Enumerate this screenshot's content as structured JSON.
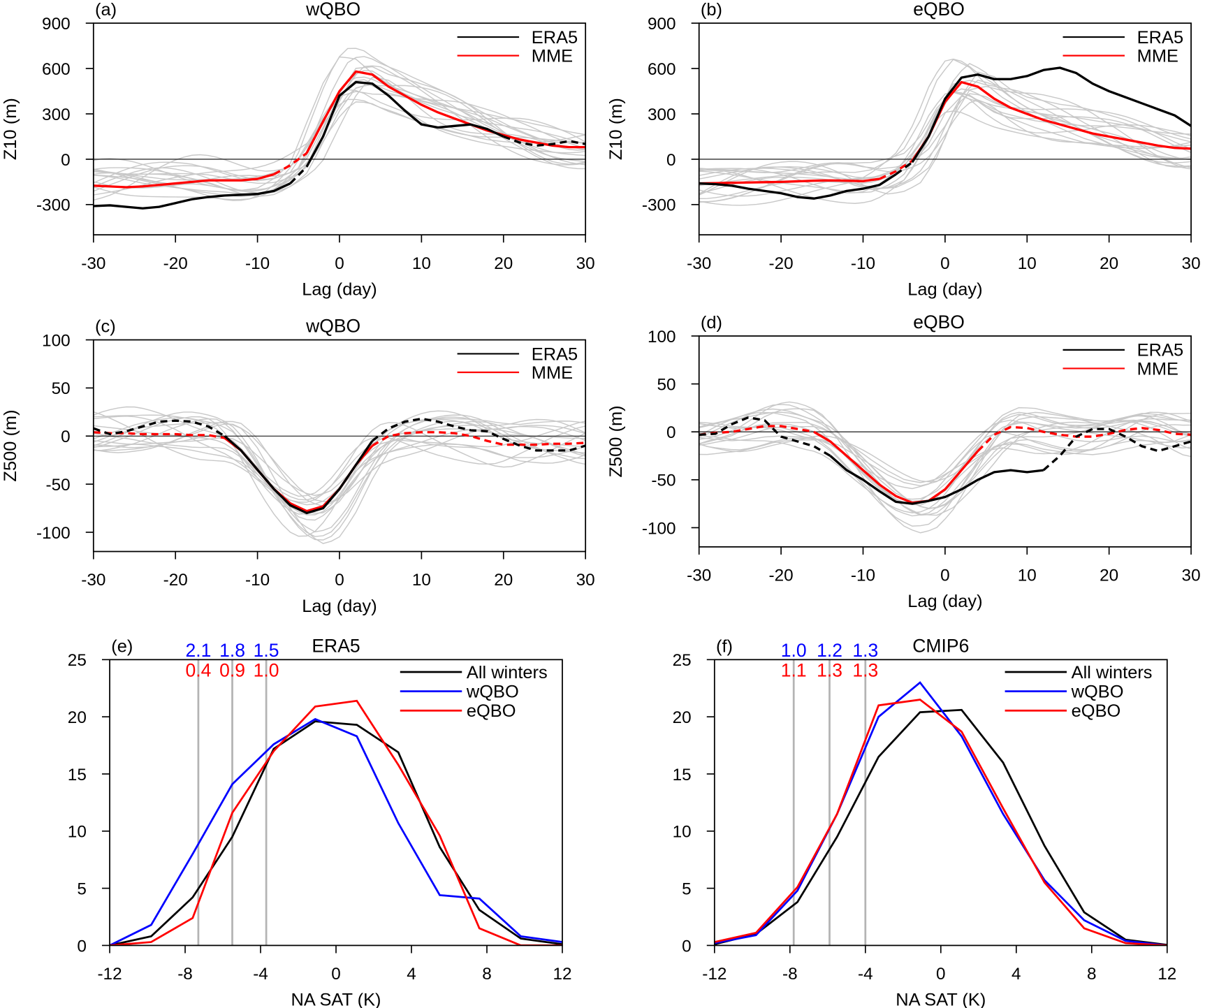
{
  "chart_data": [
    {
      "id": "a",
      "type": "line",
      "panel_label": "(a)",
      "title": "wQBO",
      "xlabel": "Lag (day)",
      "ylabel": "Z10 (m)",
      "xlim": [
        -30,
        30
      ],
      "ylim": [
        -500,
        900
      ],
      "xticks": [
        -30,
        -20,
        -10,
        0,
        10,
        20,
        30
      ],
      "yticks": [
        -300,
        0,
        300,
        600,
        900
      ],
      "legend": [
        "ERA5",
        "MME"
      ],
      "legend_position": "top-right",
      "series": [
        {
          "name": "ERA5",
          "color": "#000000",
          "x": [
            -30,
            -28,
            -26,
            -24,
            -22,
            -20,
            -18,
            -16,
            -14,
            -12,
            -10,
            -8,
            -6,
            -4,
            -2,
            0,
            2,
            4,
            6,
            8,
            10,
            12,
            14,
            16,
            18,
            20,
            22,
            24,
            26,
            28,
            30
          ],
          "y": [
            -310,
            -305,
            -315,
            -325,
            -315,
            -290,
            -265,
            -250,
            -240,
            -235,
            -230,
            -210,
            -160,
            -50,
            150,
            420,
            510,
            500,
            420,
            320,
            230,
            210,
            220,
            230,
            200,
            150,
            110,
            90,
            100,
            120,
            100
          ],
          "solid_ranges": [
            [
              -30,
              -6
            ],
            [
              -3,
              20
            ]
          ]
        },
        {
          "name": "MME",
          "color": "#ff0000",
          "x": [
            -30,
            -28,
            -26,
            -24,
            -22,
            -20,
            -18,
            -16,
            -14,
            -12,
            -10,
            -8,
            -6,
            -4,
            -2,
            0,
            2,
            4,
            6,
            8,
            10,
            12,
            14,
            16,
            18,
            20,
            22,
            24,
            26,
            28,
            30
          ],
          "y": [
            -175,
            -180,
            -185,
            -180,
            -170,
            -160,
            -150,
            -140,
            -140,
            -140,
            -130,
            -100,
            -40,
            40,
            250,
            450,
            580,
            560,
            480,
            420,
            360,
            310,
            270,
            230,
            190,
            160,
            130,
            110,
            90,
            80,
            80
          ],
          "solid_ranges": [
            [
              -30,
              -8
            ],
            [
              -3,
              30
            ]
          ]
        }
      ]
    },
    {
      "id": "b",
      "type": "line",
      "panel_label": "(b)",
      "title": "eQBO",
      "xlabel": "Lag (day)",
      "ylabel": "Z10 (m)",
      "xlim": [
        -30,
        30
      ],
      "ylim": [
        -500,
        900
      ],
      "xticks": [
        -30,
        -20,
        -10,
        0,
        10,
        20,
        30
      ],
      "yticks": [
        -300,
        0,
        300,
        600,
        900
      ],
      "legend": [
        "ERA5",
        "MME"
      ],
      "legend_position": "top-right",
      "series": [
        {
          "name": "ERA5",
          "color": "#000000",
          "x": [
            -30,
            -28,
            -26,
            -24,
            -22,
            -20,
            -18,
            -16,
            -14,
            -12,
            -10,
            -8,
            -6,
            -4,
            -2,
            0,
            2,
            4,
            6,
            8,
            10,
            12,
            14,
            16,
            18,
            20,
            22,
            24,
            26,
            28,
            30
          ],
          "y": [
            -160,
            -165,
            -175,
            -195,
            -210,
            -225,
            -250,
            -260,
            -240,
            -210,
            -195,
            -170,
            -100,
            -20,
            150,
            400,
            540,
            560,
            530,
            530,
            550,
            590,
            605,
            570,
            500,
            450,
            410,
            370,
            330,
            290,
            220
          ],
          "solid_ranges": [
            [
              -30,
              -6
            ],
            [
              -3,
              30
            ]
          ]
        },
        {
          "name": "MME",
          "color": "#ff0000",
          "x": [
            -30,
            -28,
            -26,
            -24,
            -22,
            -20,
            -18,
            -16,
            -14,
            -12,
            -10,
            -8,
            -6,
            -4,
            -2,
            0,
            2,
            4,
            6,
            8,
            10,
            12,
            14,
            16,
            18,
            20,
            22,
            24,
            26,
            28,
            30
          ],
          "y": [
            -160,
            -158,
            -156,
            -154,
            -152,
            -150,
            -146,
            -142,
            -140,
            -142,
            -145,
            -130,
            -80,
            -10,
            150,
            380,
            510,
            480,
            400,
            340,
            300,
            260,
            230,
            200,
            170,
            150,
            130,
            110,
            90,
            75,
            70
          ],
          "solid_ranges": [
            [
              -30,
              -8
            ],
            [
              -3,
              30
            ]
          ]
        }
      ]
    },
    {
      "id": "c",
      "type": "line",
      "panel_label": "(c)",
      "title": "wQBO",
      "xlabel": "Lag (day)",
      "ylabel": "Z500 (m)",
      "xlim": [
        -30,
        30
      ],
      "ylim": [
        -120,
        100
      ],
      "xticks": [
        -30,
        -20,
        -10,
        0,
        10,
        20,
        30
      ],
      "yticks": [
        -100,
        -50,
        0,
        50,
        100
      ],
      "legend": [
        "ERA5",
        "MME"
      ],
      "legend_position": "top-right",
      "series": [
        {
          "name": "ERA5",
          "color": "#000000",
          "x": [
            -30,
            -28,
            -26,
            -24,
            -22,
            -20,
            -18,
            -16,
            -14,
            -12,
            -10,
            -8,
            -6,
            -4,
            -2,
            0,
            2,
            4,
            6,
            8,
            10,
            12,
            14,
            16,
            18,
            20,
            22,
            24,
            26,
            28,
            30
          ],
          "y": [
            8,
            2,
            5,
            10,
            15,
            16,
            15,
            10,
            0,
            -15,
            -35,
            -55,
            -72,
            -80,
            -75,
            -55,
            -30,
            -5,
            8,
            15,
            18,
            15,
            10,
            6,
            5,
            -3,
            -10,
            -15,
            -15,
            -15,
            -10
          ],
          "solid_ranges": [
            [
              -14,
              3
            ]
          ]
        },
        {
          "name": "MME",
          "color": "#ff0000",
          "x": [
            -30,
            -28,
            -26,
            -24,
            -22,
            -20,
            -18,
            -16,
            -14,
            -12,
            -10,
            -8,
            -6,
            -4,
            -2,
            0,
            2,
            4,
            6,
            8,
            10,
            12,
            14,
            16,
            18,
            20,
            22,
            24,
            26,
            28,
            30
          ],
          "y": [
            4,
            3,
            3,
            2,
            2,
            2,
            1,
            1,
            -2,
            -15,
            -35,
            -55,
            -70,
            -78,
            -73,
            -55,
            -30,
            -10,
            0,
            3,
            4,
            4,
            3,
            0,
            -5,
            -9,
            -9,
            -9,
            -8,
            -8,
            -7
          ],
          "solid_ranges": [
            [
              -14,
              4
            ]
          ]
        }
      ]
    },
    {
      "id": "d",
      "type": "line",
      "panel_label": "(d)",
      "title": "eQBO",
      "xlabel": "Lag (day)",
      "ylabel": "Z500 (m)",
      "xlim": [
        -30,
        30
      ],
      "ylim": [
        -120,
        100
      ],
      "xticks": [
        -30,
        -20,
        -10,
        0,
        10,
        20,
        30
      ],
      "yticks": [
        -100,
        -50,
        0,
        50,
        100
      ],
      "legend": [
        "ERA5",
        "MME"
      ],
      "legend_position": "top-right",
      "series": [
        {
          "name": "ERA5",
          "color": "#000000",
          "x": [
            -30,
            -28,
            -26,
            -24,
            -22,
            -20,
            -18,
            -16,
            -14,
            -12,
            -10,
            -8,
            -6,
            -4,
            -2,
            0,
            2,
            4,
            6,
            8,
            10,
            12,
            14,
            16,
            18,
            20,
            22,
            24,
            26,
            28,
            30
          ],
          "y": [
            -3,
            -2,
            8,
            15,
            12,
            -5,
            -10,
            -15,
            -25,
            -40,
            -50,
            -62,
            -73,
            -75,
            -72,
            -68,
            -60,
            -50,
            -42,
            -40,
            -42,
            -40,
            -25,
            -5,
            3,
            3,
            -5,
            -15,
            -20,
            -15,
            -10
          ],
          "solid_ranges": [
            [
              -13,
              12
            ]
          ]
        },
        {
          "name": "MME",
          "color": "#ff0000",
          "x": [
            -30,
            -28,
            -26,
            -24,
            -22,
            -20,
            -18,
            -16,
            -14,
            -12,
            -10,
            -8,
            -6,
            -4,
            -2,
            0,
            2,
            4,
            6,
            8,
            10,
            12,
            14,
            16,
            18,
            20,
            22,
            24,
            26,
            28,
            30
          ],
          "y": [
            -3,
            -1,
            0,
            3,
            6,
            6,
            3,
            0,
            -10,
            -25,
            -40,
            -55,
            -67,
            -74,
            -72,
            -60,
            -40,
            -20,
            -3,
            5,
            4,
            0,
            -3,
            -5,
            -5,
            -2,
            2,
            4,
            2,
            -2,
            -3
          ],
          "solid_ranges": [
            [
              -15,
              4
            ]
          ]
        }
      ]
    },
    {
      "id": "e",
      "type": "line",
      "panel_label": "(e)",
      "title": "ERA5",
      "xlabel": "NA SAT (K)",
      "ylabel": "",
      "xlim": [
        -12,
        12
      ],
      "ylim": [
        0,
        25
      ],
      "xticks": [
        -12,
        -8,
        -4,
        0,
        4,
        8,
        12
      ],
      "yticks": [
        0,
        5,
        10,
        15,
        20,
        25
      ],
      "legend_position": "top-right",
      "x": [
        -12,
        -9.8,
        -7.6,
        -5.5,
        -3.3,
        -1.1,
        1.1,
        3.3,
        5.5,
        7.6,
        9.8,
        12
      ],
      "series": [
        {
          "name": "All winters",
          "color": "#000000",
          "y": [
            0,
            0.8,
            4.2,
            9.5,
            17.2,
            19.6,
            19.3,
            16.9,
            8.6,
            3.1,
            0.6,
            0.1
          ]
        },
        {
          "name": "wQBO",
          "color": "#0000ff",
          "y": [
            0,
            1.8,
            8.0,
            14.1,
            17.6,
            19.8,
            18.3,
            10.7,
            4.4,
            4.1,
            0.8,
            0.3
          ]
        },
        {
          "name": "eQBO",
          "color": "#ff0000",
          "y": [
            0,
            0.3,
            2.4,
            11.6,
            17.0,
            20.9,
            21.4,
            15.8,
            9.6,
            1.5,
            0,
            0
          ]
        }
      ],
      "threshold_lines_x": [
        -7.3,
        -5.5,
        -3.7
      ],
      "threshold_labels_wqbo": [
        "2.1",
        "1.8",
        "1.5"
      ],
      "threshold_labels_eqbo": [
        "0.4",
        "0.9",
        "1.0"
      ]
    },
    {
      "id": "f",
      "type": "line",
      "panel_label": "(f)",
      "title": "CMIP6",
      "xlabel": "NA SAT (K)",
      "ylabel": "",
      "xlim": [
        -12,
        12
      ],
      "ylim": [
        0,
        25
      ],
      "xticks": [
        -12,
        -8,
        -4,
        0,
        4,
        8,
        12
      ],
      "yticks": [
        0,
        5,
        10,
        15,
        20,
        25
      ],
      "legend_position": "top-right",
      "x": [
        -12,
        -9.8,
        -7.6,
        -5.5,
        -3.3,
        -1.1,
        1.1,
        3.3,
        5.5,
        7.6,
        9.8,
        12
      ],
      "series": [
        {
          "name": "All winters",
          "color": "#000000",
          "y": [
            0.1,
            1.0,
            3.8,
            9.5,
            16.5,
            20.4,
            20.6,
            16.0,
            8.7,
            2.9,
            0.5,
            0.05
          ]
        },
        {
          "name": "wQBO",
          "color": "#0000ff",
          "y": [
            0.2,
            0.9,
            4.8,
            11.5,
            20.0,
            23.0,
            18.3,
            11.5,
            5.7,
            2.2,
            0.4,
            0
          ]
        },
        {
          "name": "eQBO",
          "color": "#ff0000",
          "y": [
            0.3,
            1.1,
            5.1,
            11.5,
            21.0,
            21.5,
            18.7,
            12.0,
            5.5,
            1.5,
            0.2,
            0
          ]
        }
      ],
      "threshold_lines_x": [
        -7.8,
        -5.9,
        -4.0
      ],
      "threshold_labels_wqbo": [
        "1.0",
        "1.2",
        "1.3"
      ],
      "threshold_labels_eqbo": [
        "1.1",
        "1.3",
        "1.3"
      ]
    }
  ],
  "colors": {
    "model_members": "#c8c8c8",
    "threshold_lines": "#b4b4b4"
  }
}
